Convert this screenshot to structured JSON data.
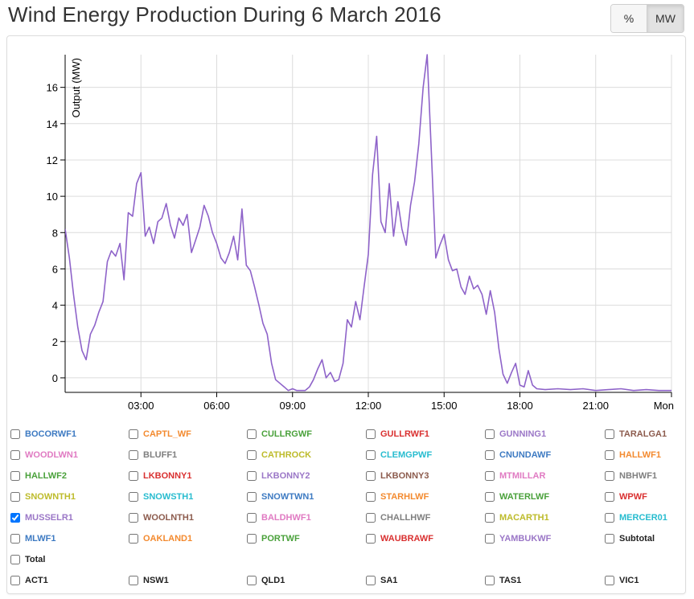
{
  "title": "Wind Energy Production During 6 March 2016",
  "toggles": [
    {
      "label": "%",
      "active": false
    },
    {
      "label": "MW",
      "active": true
    }
  ],
  "chart_data": {
    "type": "line",
    "title": "Wind Energy Production During 6 March 2016",
    "ylabel": "Output (MW)",
    "xlabel": "",
    "ylim": [
      -0.8,
      17.8
    ],
    "yticks": [
      0,
      2,
      4,
      6,
      8,
      10,
      12,
      14,
      16
    ],
    "xlim": [
      0,
      24
    ],
    "xticks": [
      {
        "value": 3,
        "label": "03:00"
      },
      {
        "value": 6,
        "label": "06:00"
      },
      {
        "value": 9,
        "label": "09:00"
      },
      {
        "value": 12,
        "label": "12:00"
      },
      {
        "value": 15,
        "label": "15:00"
      },
      {
        "value": 18,
        "label": "18:00"
      },
      {
        "value": 21,
        "label": "21:00"
      },
      {
        "value": 24,
        "label": "Mon"
      }
    ],
    "grid": true,
    "series": [
      {
        "name": "MUSSELR1",
        "color": "#8e63c9",
        "points": [
          [
            0.0,
            8.2
          ],
          [
            0.17,
            6.6
          ],
          [
            0.33,
            4.6
          ],
          [
            0.5,
            2.8
          ],
          [
            0.67,
            1.5
          ],
          [
            0.83,
            1.0
          ],
          [
            1.0,
            2.4
          ],
          [
            1.17,
            2.9
          ],
          [
            1.33,
            3.6
          ],
          [
            1.5,
            4.2
          ],
          [
            1.67,
            6.4
          ],
          [
            1.83,
            7.0
          ],
          [
            2.0,
            6.7
          ],
          [
            2.17,
            7.4
          ],
          [
            2.33,
            5.4
          ],
          [
            2.5,
            9.1
          ],
          [
            2.67,
            8.9
          ],
          [
            2.83,
            10.7
          ],
          [
            3.0,
            11.3
          ],
          [
            3.17,
            7.8
          ],
          [
            3.33,
            8.3
          ],
          [
            3.5,
            7.4
          ],
          [
            3.67,
            8.6
          ],
          [
            3.83,
            8.8
          ],
          [
            4.0,
            9.6
          ],
          [
            4.17,
            8.4
          ],
          [
            4.33,
            7.7
          ],
          [
            4.5,
            8.8
          ],
          [
            4.67,
            8.4
          ],
          [
            4.83,
            9.0
          ],
          [
            5.0,
            6.9
          ],
          [
            5.17,
            7.6
          ],
          [
            5.33,
            8.3
          ],
          [
            5.5,
            9.5
          ],
          [
            5.67,
            8.9
          ],
          [
            5.83,
            8.0
          ],
          [
            6.0,
            7.4
          ],
          [
            6.17,
            6.6
          ],
          [
            6.33,
            6.3
          ],
          [
            6.5,
            6.9
          ],
          [
            6.67,
            7.8
          ],
          [
            6.83,
            6.5
          ],
          [
            7.0,
            9.3
          ],
          [
            7.17,
            6.2
          ],
          [
            7.33,
            5.9
          ],
          [
            7.5,
            5.0
          ],
          [
            7.67,
            4.0
          ],
          [
            7.83,
            3.0
          ],
          [
            8.0,
            2.4
          ],
          [
            8.17,
            0.8
          ],
          [
            8.33,
            -0.1
          ],
          [
            8.5,
            -0.3
          ],
          [
            8.67,
            -0.5
          ],
          [
            8.83,
            -0.7
          ],
          [
            9.0,
            -0.6
          ],
          [
            9.17,
            -0.7
          ],
          [
            9.33,
            -0.7
          ],
          [
            9.5,
            -0.7
          ],
          [
            9.67,
            -0.5
          ],
          [
            9.83,
            -0.1
          ],
          [
            10.0,
            0.5
          ],
          [
            10.17,
            1.0
          ],
          [
            10.33,
            0.0
          ],
          [
            10.5,
            0.3
          ],
          [
            10.67,
            -0.2
          ],
          [
            10.83,
            -0.1
          ],
          [
            11.0,
            0.8
          ],
          [
            11.17,
            3.2
          ],
          [
            11.33,
            2.8
          ],
          [
            11.5,
            4.2
          ],
          [
            11.67,
            3.2
          ],
          [
            11.83,
            5.0
          ],
          [
            12.0,
            6.8
          ],
          [
            12.17,
            11.2
          ],
          [
            12.33,
            13.3
          ],
          [
            12.5,
            8.6
          ],
          [
            12.67,
            8.0
          ],
          [
            12.83,
            10.7
          ],
          [
            13.0,
            7.8
          ],
          [
            13.17,
            9.7
          ],
          [
            13.33,
            8.2
          ],
          [
            13.5,
            7.3
          ],
          [
            13.67,
            9.5
          ],
          [
            13.83,
            10.8
          ],
          [
            14.0,
            12.9
          ],
          [
            14.17,
            16.0
          ],
          [
            14.33,
            17.8
          ],
          [
            14.5,
            12.3
          ],
          [
            14.67,
            6.6
          ],
          [
            14.83,
            7.3
          ],
          [
            15.0,
            7.9
          ],
          [
            15.17,
            6.5
          ],
          [
            15.33,
            5.9
          ],
          [
            15.5,
            6.0
          ],
          [
            15.67,
            5.0
          ],
          [
            15.83,
            4.6
          ],
          [
            16.0,
            5.6
          ],
          [
            16.17,
            4.9
          ],
          [
            16.33,
            5.1
          ],
          [
            16.5,
            4.6
          ],
          [
            16.67,
            3.5
          ],
          [
            16.83,
            4.8
          ],
          [
            17.0,
            3.6
          ],
          [
            17.17,
            1.6
          ],
          [
            17.33,
            0.2
          ],
          [
            17.5,
            -0.3
          ],
          [
            17.67,
            0.3
          ],
          [
            17.83,
            0.8
          ],
          [
            18.0,
            -0.4
          ],
          [
            18.17,
            -0.5
          ],
          [
            18.33,
            0.4
          ],
          [
            18.5,
            -0.4
          ],
          [
            18.67,
            -0.6
          ],
          [
            19.0,
            -0.65
          ],
          [
            19.5,
            -0.6
          ],
          [
            20.0,
            -0.65
          ],
          [
            20.5,
            -0.6
          ],
          [
            21.0,
            -0.7
          ],
          [
            21.5,
            -0.65
          ],
          [
            22.0,
            -0.6
          ],
          [
            22.5,
            -0.7
          ],
          [
            23.0,
            -0.65
          ],
          [
            23.5,
            -0.7
          ],
          [
            24.0,
            -0.7
          ]
        ]
      }
    ]
  },
  "legend": {
    "rows": [
      [
        {
          "label": "BOCORWF1",
          "color": "#3d7ac2",
          "checked": false
        },
        {
          "label": "CAPTL_WF",
          "color": "#f38a2f",
          "checked": false
        },
        {
          "label": "CULLRGWF",
          "color": "#4aa13b",
          "checked": false
        },
        {
          "label": "GULLRWF1",
          "color": "#d93030",
          "checked": false
        },
        {
          "label": "GUNNING1",
          "color": "#9b77c7",
          "checked": false
        },
        {
          "label": "TARALGA1",
          "color": "#8c5b4d",
          "checked": false
        }
      ],
      [
        {
          "label": "WOODLWN1",
          "color": "#e07ac2",
          "checked": false
        },
        {
          "label": "BLUFF1",
          "color": "#7f7f7f",
          "checked": false
        },
        {
          "label": "CATHROCK",
          "color": "#bdbb2a",
          "checked": false
        },
        {
          "label": "CLEMGPWF",
          "color": "#27bccf",
          "checked": false
        },
        {
          "label": "CNUNDAWF",
          "color": "#3d7ac2",
          "checked": false
        },
        {
          "label": "HALLWF1",
          "color": "#f38a2f",
          "checked": false
        }
      ],
      [
        {
          "label": "HALLWF2",
          "color": "#4aa13b",
          "checked": false
        },
        {
          "label": "LKBONNY1",
          "color": "#d93030",
          "checked": false
        },
        {
          "label": "LKBONNY2",
          "color": "#9b77c7",
          "checked": false
        },
        {
          "label": "LKBONNY3",
          "color": "#8c5b4d",
          "checked": false
        },
        {
          "label": "MTMILLAR",
          "color": "#e07ac2",
          "checked": false
        },
        {
          "label": "NBHWF1",
          "color": "#7f7f7f",
          "checked": false
        }
      ],
      [
        {
          "label": "SNOWNTH1",
          "color": "#bdbb2a",
          "checked": false
        },
        {
          "label": "SNOWSTH1",
          "color": "#27bccf",
          "checked": false
        },
        {
          "label": "SNOWTWN1",
          "color": "#3d7ac2",
          "checked": false
        },
        {
          "label": "STARHLWF",
          "color": "#f38a2f",
          "checked": false
        },
        {
          "label": "WATERLWF",
          "color": "#4aa13b",
          "checked": false
        },
        {
          "label": "WPWF",
          "color": "#d93030",
          "checked": false
        }
      ],
      [
        {
          "label": "MUSSELR1",
          "color": "#9b77c7",
          "checked": true
        },
        {
          "label": "WOOLNTH1",
          "color": "#8c5b4d",
          "checked": false
        },
        {
          "label": "BALDHWF1",
          "color": "#e07ac2",
          "checked": false
        },
        {
          "label": "CHALLHWF",
          "color": "#7f7f7f",
          "checked": false
        },
        {
          "label": "MACARTH1",
          "color": "#bdbb2a",
          "checked": false
        },
        {
          "label": "MERCER01",
          "color": "#27bccf",
          "checked": false
        }
      ],
      [
        {
          "label": "MLWF1",
          "color": "#3d7ac2",
          "checked": false
        },
        {
          "label": "OAKLAND1",
          "color": "#f38a2f",
          "checked": false
        },
        {
          "label": "PORTWF",
          "color": "#4aa13b",
          "checked": false
        },
        {
          "label": "WAUBRAWF",
          "color": "#d93030",
          "checked": false
        },
        {
          "label": "YAMBUKWF",
          "color": "#9b77c7",
          "checked": false
        },
        {
          "label": "Subtotal",
          "color": "#222222",
          "checked": false
        }
      ],
      [
        {
          "label": "Total",
          "color": "#222222",
          "checked": false
        }
      ],
      [
        {
          "label": "ACT1",
          "color": "#222222",
          "checked": false
        },
        {
          "label": "NSW1",
          "color": "#222222",
          "checked": false
        },
        {
          "label": "QLD1",
          "color": "#222222",
          "checked": false
        },
        {
          "label": "SA1",
          "color": "#222222",
          "checked": false
        },
        {
          "label": "TAS1",
          "color": "#222222",
          "checked": false
        },
        {
          "label": "VIC1",
          "color": "#222222",
          "checked": false
        }
      ]
    ]
  }
}
